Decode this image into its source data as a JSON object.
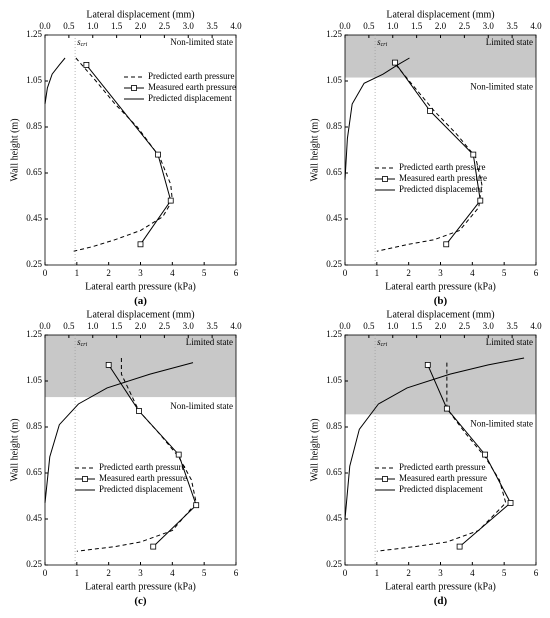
{
  "chart_data": [
    {
      "type": "line",
      "panel_label": "(a)",
      "xlabel": "Lateral earth pressure (kPa)",
      "x2label": "Lateral displacement (mm)",
      "ylabel": "Wall height (m)",
      "xlim": [
        0,
        6
      ],
      "xticks": [
        0,
        1,
        2,
        3,
        4,
        5,
        6
      ],
      "x2lim": [
        0,
        4
      ],
      "x2ticks": [
        {
          "value": 0,
          "label": "0.0"
        },
        0.5,
        {
          "value": 1,
          "label": "1.0"
        },
        1.5,
        {
          "value": 2,
          "label": "2.0"
        },
        2.5,
        {
          "value": 3,
          "label": "3.0"
        },
        3.5,
        {
          "value": 4,
          "label": "4.0"
        }
      ],
      "ylim": [
        0.25,
        1.25
      ],
      "yticks": [
        0.25,
        0.45,
        0.65,
        0.85,
        1.05,
        1.25
      ],
      "legend": "upper right",
      "reference": {
        "text": "s",
        "sub": "cri",
        "value": 0.63
      },
      "non_limited_label": "Non-limited state",
      "series": [
        {
          "name": "Predicted earth pressure",
          "color": "#000000",
          "style": "dashed",
          "marker": "none",
          "axis": "x",
          "x": [
            0.97,
            1.6,
            2.2,
            2.9,
            3.6,
            3.95,
            4.0,
            3.7,
            3.0,
            2.2,
            1.5,
            0.9
          ],
          "values": [
            1.15,
            1.05,
            0.95,
            0.85,
            0.72,
            0.6,
            0.53,
            0.46,
            0.4,
            0.36,
            0.33,
            0.31
          ]
        },
        {
          "name": "Measured earth pressure",
          "color": "#000000",
          "style": "solid",
          "marker": "square",
          "axis": "x",
          "x": [
            1.3,
            3.55,
            3.95,
            3.0
          ],
          "values": [
            1.12,
            0.73,
            0.53,
            0.34
          ]
        },
        {
          "name": "Predicted displacement",
          "color": "#000000",
          "style": "solid",
          "marker": "none",
          "axis": "x2",
          "x": [
            0.0,
            0.05,
            0.15,
            0.3,
            0.42
          ],
          "values": [
            0.95,
            1.02,
            1.08,
            1.12,
            1.15
          ]
        }
      ]
    },
    {
      "type": "line",
      "panel_label": "(b)",
      "xlabel": "Lateral earth pressure (kPa)",
      "x2label": "Lateral displacement (mm)",
      "ylabel": "Wall height (m)",
      "xlim": [
        0,
        6
      ],
      "xticks": [
        0,
        1,
        2,
        3,
        4,
        5,
        6
      ],
      "x2lim": [
        0,
        4
      ],
      "x2ticks": [
        {
          "value": 0,
          "label": "0.0"
        },
        0.5,
        {
          "value": 1,
          "label": "1.0"
        },
        1.5,
        {
          "value": 2,
          "label": "2.0"
        },
        2.5,
        {
          "value": 3,
          "label": "3.0"
        },
        3.5,
        {
          "value": 4,
          "label": "4.0"
        }
      ],
      "ylim": [
        0.25,
        1.25
      ],
      "yticks": [
        0.25,
        0.45,
        0.65,
        0.85,
        1.05,
        1.25
      ],
      "legend": "center left",
      "reference": {
        "text": "s",
        "sub": "cri",
        "value": 0.63
      },
      "limited_from": 1.065,
      "limited_label": "Limited state",
      "non_limited_label": "Non-limited state",
      "series": [
        {
          "name": "Predicted earth pressure",
          "color": "#000000",
          "style": "dashed",
          "marker": "none",
          "axis": "x",
          "x": [
            1.6,
            2.2,
            2.8,
            3.5,
            4.1,
            4.3,
            4.2,
            3.6,
            2.8,
            2.0,
            1.0
          ],
          "values": [
            1.12,
            1.02,
            0.92,
            0.82,
            0.72,
            0.6,
            0.5,
            0.4,
            0.36,
            0.34,
            0.31
          ]
        },
        {
          "name": "Measured earth pressure",
          "color": "#000000",
          "style": "solid",
          "marker": "square",
          "axis": "x",
          "x": [
            1.57,
            2.67,
            4.03,
            4.25,
            3.18
          ],
          "values": [
            1.13,
            0.92,
            0.73,
            0.53,
            0.34
          ]
        },
        {
          "name": "Predicted displacement",
          "color": "#000000",
          "style": "solid",
          "marker": "none",
          "axis": "x2",
          "x": [
            0.0,
            0.05,
            0.15,
            0.4,
            0.8,
            1.1,
            1.35
          ],
          "values": [
            0.62,
            0.8,
            0.95,
            1.04,
            1.08,
            1.12,
            1.15
          ]
        }
      ]
    },
    {
      "type": "line",
      "panel_label": "(c)",
      "xlabel": "Lateral earth pressure (kPa)",
      "x2label": "Lateral displacement (mm)",
      "ylabel": "Wall height (m)",
      "xlim": [
        0,
        6
      ],
      "xticks": [
        0,
        1,
        2,
        3,
        4,
        5,
        6
      ],
      "x2lim": [
        0,
        4
      ],
      "x2ticks": [
        {
          "value": 0,
          "label": "0.0"
        },
        0.5,
        {
          "value": 1,
          "label": "1.0"
        },
        1.5,
        {
          "value": 2,
          "label": "2.0"
        },
        2.5,
        {
          "value": 3,
          "label": "3.0"
        },
        3.5,
        {
          "value": 4,
          "label": "4.0"
        }
      ],
      "ylim": [
        0.25,
        1.25
      ],
      "yticks": [
        0.25,
        0.45,
        0.65,
        0.85,
        1.05,
        1.25
      ],
      "legend": "center left",
      "reference": {
        "text": "s",
        "sub": "cri",
        "value": 0.63
      },
      "limited_from": 0.98,
      "limited_label": "Limited state",
      "non_limited_label": "Non-limited state",
      "series": [
        {
          "name": "Predicted earth pressure",
          "color": "#000000",
          "style": "dashed",
          "marker": "none",
          "axis": "x",
          "x": [
            2.4,
            2.4,
            2.95,
            3.6,
            4.2,
            4.6,
            4.75,
            4.0,
            3.0,
            2.2,
            1.0
          ],
          "values": [
            1.15,
            1.08,
            0.92,
            0.82,
            0.72,
            0.62,
            0.52,
            0.4,
            0.35,
            0.33,
            0.31
          ]
        },
        {
          "name": "Measured earth pressure",
          "color": "#000000",
          "style": "solid",
          "marker": "square",
          "axis": "x",
          "x": [
            2.0,
            2.95,
            4.2,
            4.75,
            3.4
          ],
          "values": [
            1.12,
            0.92,
            0.73,
            0.51,
            0.33
          ]
        },
        {
          "name": "Predicted displacement",
          "color": "#000000",
          "style": "solid",
          "marker": "none",
          "axis": "x2",
          "x": [
            0.0,
            0.1,
            0.3,
            0.7,
            1.3,
            2.2,
            3.1
          ],
          "values": [
            0.52,
            0.72,
            0.86,
            0.95,
            1.02,
            1.08,
            1.13
          ]
        }
      ]
    },
    {
      "type": "line",
      "panel_label": "(d)",
      "xlabel": "Lateral earth pressure (kPa)",
      "x2label": "Lateral displacement (mm)",
      "ylabel": "Wall height (m)",
      "xlim": [
        0,
        6
      ],
      "xticks": [
        0,
        1,
        2,
        3,
        4,
        5,
        6
      ],
      "x2lim": [
        0,
        4
      ],
      "x2ticks": [
        {
          "value": 0,
          "label": "0.0"
        },
        0.5,
        {
          "value": 1,
          "label": "1.0"
        },
        1.5,
        {
          "value": 2,
          "label": "2.0"
        },
        2.5,
        {
          "value": 3,
          "label": "3.0"
        },
        3.5,
        {
          "value": 4,
          "label": "4.0"
        }
      ],
      "ylim": [
        0.25,
        1.25
      ],
      "yticks": [
        0.25,
        0.45,
        0.65,
        0.85,
        1.05,
        1.25
      ],
      "legend": "center left",
      "reference": {
        "text": "s",
        "sub": "cri",
        "value": 0.63
      },
      "limited_from": 0.905,
      "limited_label": "Limited state",
      "non_limited_label": "Non-limited state",
      "series": [
        {
          "name": "Predicted earth pressure",
          "color": "#000000",
          "style": "dashed",
          "marker": "none",
          "axis": "x",
          "x": [
            3.2,
            3.2,
            3.8,
            4.4,
            4.85,
            5.05,
            4.2,
            3.2,
            2.2,
            1.0
          ],
          "values": [
            1.13,
            0.93,
            0.82,
            0.72,
            0.62,
            0.52,
            0.4,
            0.35,
            0.33,
            0.31
          ]
        },
        {
          "name": "Measured earth pressure",
          "color": "#000000",
          "style": "solid",
          "marker": "square",
          "axis": "x",
          "x": [
            2.6,
            3.2,
            4.4,
            5.2,
            3.6
          ],
          "values": [
            1.12,
            0.93,
            0.73,
            0.52,
            0.33
          ]
        },
        {
          "name": "Predicted displacement",
          "color": "#000000",
          "style": "solid",
          "marker": "none",
          "axis": "x2",
          "x": [
            0.0,
            0.1,
            0.3,
            0.7,
            1.3,
            2.2,
            3.0,
            3.75
          ],
          "values": [
            0.45,
            0.68,
            0.84,
            0.95,
            1.02,
            1.08,
            1.12,
            1.15
          ]
        }
      ]
    }
  ]
}
